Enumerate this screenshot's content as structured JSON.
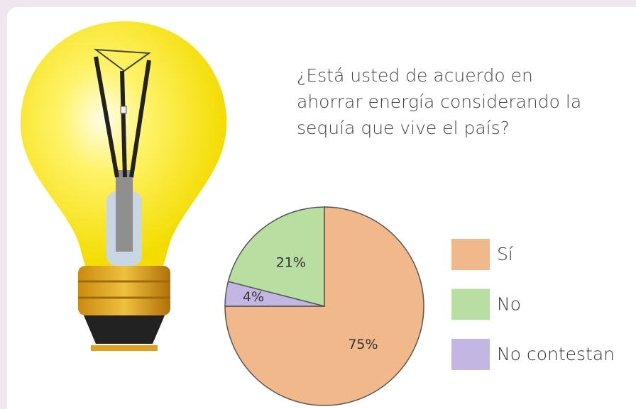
{
  "chart_data": {
    "type": "pie",
    "title": "¿Está usted de acuerdo en ahorrar energía considerando la sequía que vive el país?",
    "categories": [
      "Sí",
      "No",
      "No contestan"
    ],
    "values": [
      75,
      21,
      4
    ],
    "value_labels": [
      "75%",
      "21%",
      "4%"
    ],
    "colors": [
      "#f1b98b",
      "#b9dea2",
      "#c4b6e2"
    ]
  }
}
